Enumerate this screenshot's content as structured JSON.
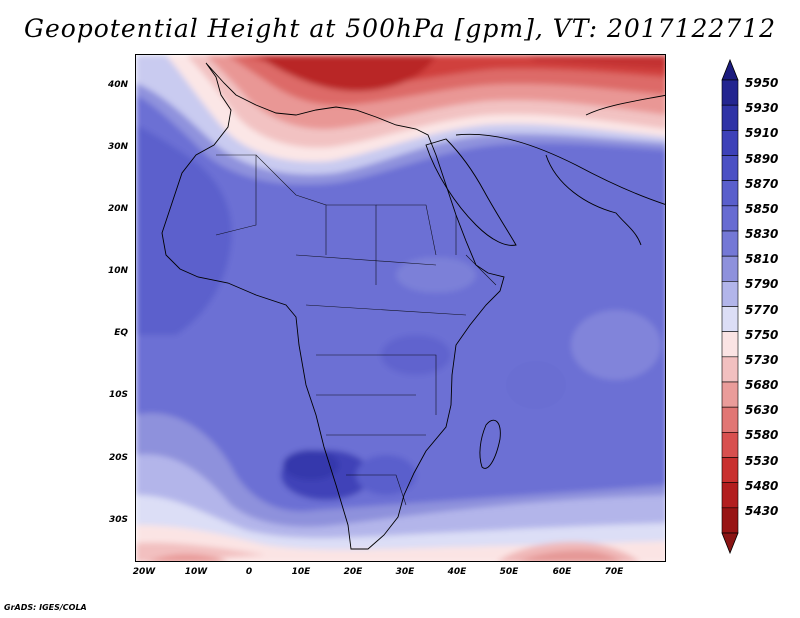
{
  "title": "Geopotential Height at 500hPa [gpm], VT: 2017122712",
  "credit": "GrADS: IGES/COLA",
  "map": {
    "variable": "Geopotential Height",
    "level": "500hPa",
    "units": "gpm",
    "valid_time": "2017122712",
    "lat_labels": [
      "40N",
      "30N",
      "20N",
      "10N",
      "EQ",
      "10S",
      "20S",
      "30S"
    ],
    "lon_labels": [
      "20W",
      "10W",
      "0",
      "10E",
      "20E",
      "30E",
      "40E",
      "50E",
      "60E",
      "70E"
    ]
  },
  "colorbar": {
    "levels": [
      "5950",
      "5930",
      "5910",
      "5890",
      "5870",
      "5850",
      "5830",
      "5810",
      "5790",
      "5770",
      "5750",
      "5730",
      "5680",
      "5630",
      "5580",
      "5530",
      "5480",
      "5430"
    ],
    "colors": [
      "#232590",
      "#2f33a6",
      "#3d41b8",
      "#4b50c4",
      "#5a5fcc",
      "#676bd2",
      "#7478d6",
      "#8e91dc",
      "#b2b5ea",
      "#dcdef6",
      "#fbe4e4",
      "#f2c0c0",
      "#ea9c9a",
      "#e17674",
      "#d8504f",
      "#c9302f",
      "#b21e1f",
      "#981414"
    ],
    "top_arrow_color": "#1c1c7e",
    "bottom_arrow_color": "#8a1414"
  }
}
